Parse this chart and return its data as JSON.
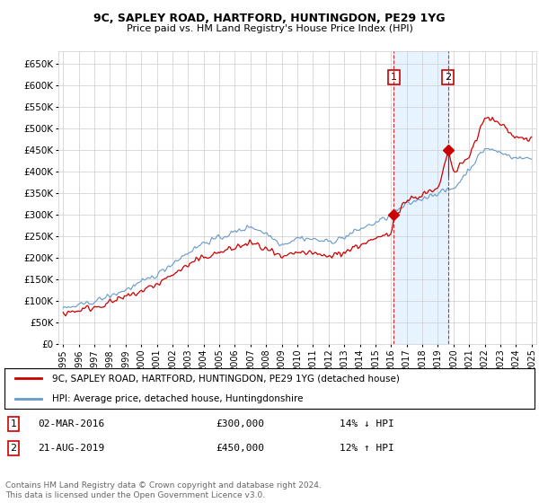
{
  "title1": "9C, SAPLEY ROAD, HARTFORD, HUNTINGDON, PE29 1YG",
  "title2": "Price paid vs. HM Land Registry's House Price Index (HPI)",
  "ylim": [
    0,
    680000
  ],
  "yticks": [
    0,
    50000,
    100000,
    150000,
    200000,
    250000,
    300000,
    350000,
    400000,
    450000,
    500000,
    550000,
    600000,
    650000
  ],
  "ytick_labels": [
    "£0",
    "£50K",
    "£100K",
    "£150K",
    "£200K",
    "£250K",
    "£300K",
    "£350K",
    "£400K",
    "£450K",
    "£500K",
    "£550K",
    "£600K",
    "£650K"
  ],
  "transaction1_date": "02-MAR-2016",
  "transaction1_year": 2016.17,
  "transaction1_price": 300000,
  "transaction1_pct": "14% ↓ HPI",
  "transaction2_date": "21-AUG-2019",
  "transaction2_year": 2019.64,
  "transaction2_price": 450000,
  "transaction2_pct": "12% ↑ HPI",
  "legend_property": "9C, SAPLEY ROAD, HARTFORD, HUNTINGDON, PE29 1YG (detached house)",
  "legend_hpi": "HPI: Average price, detached house, Huntingdonshire",
  "footer": "Contains HM Land Registry data © Crown copyright and database right 2024.\nThis data is licensed under the Open Government Licence v3.0.",
  "property_color": "#cc0000",
  "hpi_color": "#6699cc",
  "shade_color": "#ddeeff",
  "marker_box_color": "#cc0000",
  "bg_color": "#ffffff",
  "grid_color": "#cccccc"
}
